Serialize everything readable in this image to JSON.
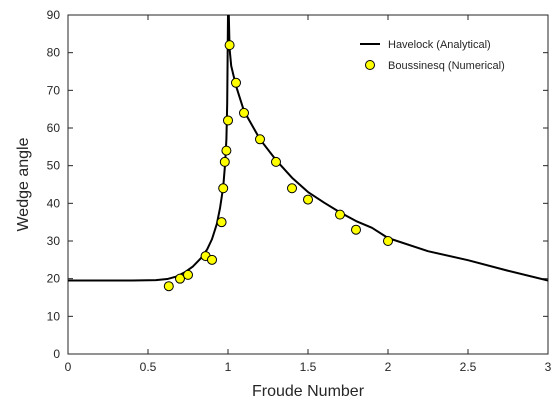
{
  "chart_data": {
    "type": "line",
    "title": "",
    "xlabel": "Froude Number",
    "ylabel": "Wedge angle",
    "xlim": [
      0,
      3
    ],
    "ylim": [
      0,
      90
    ],
    "xticks": [
      0,
      0.5,
      1,
      1.5,
      2,
      2.5,
      3
    ],
    "xtick_labels": [
      "0",
      "0.5",
      "1",
      "1.5",
      "2",
      "2.5",
      "3"
    ],
    "yticks": [
      0,
      10,
      20,
      30,
      40,
      50,
      60,
      70,
      80,
      90
    ],
    "ytick_labels": [
      "0",
      "10",
      "20",
      "30",
      "40",
      "50",
      "60",
      "70",
      "80",
      "90"
    ],
    "grid": false,
    "legend_position": "top-right",
    "series": [
      {
        "name": "Havelock (Analytical)",
        "type": "line",
        "color": "#000000",
        "x": [
          0,
          0.4,
          0.55,
          0.62,
          0.68,
          0.73,
          0.78,
          0.83,
          0.87,
          0.9,
          0.93,
          0.95,
          0.97,
          0.98,
          0.99,
          0.995,
          1.0,
          1.005,
          1.01,
          1.02,
          1.05,
          1.1,
          1.2,
          1.3,
          1.4,
          1.5,
          1.6,
          1.7,
          1.8,
          1.9,
          2.0,
          2.25,
          2.5,
          2.75,
          3.0
        ],
        "y": [
          19.5,
          19.5,
          19.6,
          19.9,
          20.6,
          21.7,
          23.2,
          25.4,
          27.8,
          30.5,
          34.5,
          38.7,
          44.3,
          49.5,
          57,
          66.5,
          90,
          90,
          81,
          76.5,
          71.2,
          64.5,
          57,
          51.5,
          46.8,
          43,
          40.2,
          37.6,
          35.3,
          33.5,
          30.8,
          27.3,
          24.9,
          22.1,
          19.5
        ]
      },
      {
        "name": "Boussinesq (Numerical)",
        "type": "scatter",
        "color": "#ffff00",
        "x": [
          0.63,
          0.7,
          0.75,
          0.86,
          0.9,
          0.96,
          0.97,
          0.98,
          0.99,
          1.0,
          1.01,
          1.05,
          1.1,
          1.2,
          1.3,
          1.4,
          1.5,
          1.7,
          1.8,
          2.0
        ],
        "y": [
          18,
          20,
          21,
          26,
          25,
          35,
          44,
          51,
          54,
          62,
          82,
          72,
          64,
          57,
          51,
          44,
          41,
          37,
          33,
          30
        ]
      }
    ]
  }
}
